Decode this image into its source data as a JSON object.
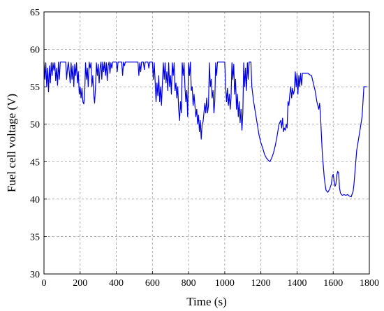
{
  "chart_data": {
    "type": "line",
    "xlabel": "Time (s)",
    "ylabel": "Fuel cell voltage (V)",
    "xlim": [
      0,
      1800
    ],
    "ylim": [
      30,
      65
    ],
    "xticks": [
      0,
      200,
      400,
      600,
      800,
      1000,
      1200,
      1400,
      1600,
      1800
    ],
    "yticks": [
      30,
      35,
      40,
      45,
      50,
      55,
      60,
      65
    ],
    "grid": true,
    "line_color": "#0000e6",
    "series": [
      {
        "values": [
          [
            0,
            58.3
          ],
          [
            5,
            56
          ],
          [
            10,
            58.2
          ],
          [
            15,
            55
          ],
          [
            20,
            57.5
          ],
          [
            25,
            54.3
          ],
          [
            30,
            57.8
          ],
          [
            35,
            55.5
          ],
          [
            40,
            58.2
          ],
          [
            45,
            56.5
          ],
          [
            50,
            58.2
          ],
          [
            55,
            57.2
          ],
          [
            60,
            58.2
          ],
          [
            65,
            55.8
          ],
          [
            70,
            57.5
          ],
          [
            75,
            55.2
          ],
          [
            80,
            58.3
          ],
          [
            85,
            56
          ],
          [
            90,
            58.3
          ],
          [
            120,
            58.3
          ],
          [
            125,
            56
          ],
          [
            130,
            57.5
          ],
          [
            135,
            58.3
          ],
          [
            140,
            57
          ],
          [
            145,
            55.5
          ],
          [
            150,
            58.2
          ],
          [
            155,
            56
          ],
          [
            160,
            57.8
          ],
          [
            165,
            55
          ],
          [
            170,
            58
          ],
          [
            175,
            56.5
          ],
          [
            180,
            58.2
          ],
          [
            185,
            55.5
          ],
          [
            190,
            57
          ],
          [
            195,
            54
          ],
          [
            200,
            55
          ],
          [
            205,
            53.5
          ],
          [
            210,
            54.8
          ],
          [
            215,
            53
          ],
          [
            220,
            52.7
          ],
          [
            225,
            54
          ],
          [
            230,
            58.2
          ],
          [
            235,
            56
          ],
          [
            240,
            57.5
          ],
          [
            245,
            55
          ],
          [
            250,
            58.3
          ],
          [
            255,
            57.5
          ],
          [
            260,
            58.2
          ],
          [
            265,
            55
          ],
          [
            270,
            56.5
          ],
          [
            275,
            54
          ],
          [
            280,
            52.8
          ],
          [
            285,
            55
          ],
          [
            290,
            58.2
          ],
          [
            295,
            56.5
          ],
          [
            300,
            58
          ],
          [
            305,
            55.5
          ],
          [
            310,
            57.5
          ],
          [
            315,
            58.3
          ],
          [
            320,
            56
          ],
          [
            325,
            58.3
          ],
          [
            330,
            57
          ],
          [
            335,
            58.3
          ],
          [
            340,
            56.5
          ],
          [
            345,
            58.2
          ],
          [
            350,
            55.8
          ],
          [
            355,
            57.8
          ],
          [
            360,
            58.3
          ],
          [
            365,
            56.8
          ],
          [
            370,
            58.2
          ],
          [
            375,
            57.5
          ],
          [
            380,
            58.3
          ],
          [
            400,
            58.3
          ],
          [
            405,
            57
          ],
          [
            410,
            58.3
          ],
          [
            430,
            58.3
          ],
          [
            435,
            56.5
          ],
          [
            440,
            58.3
          ],
          [
            445,
            57.8
          ],
          [
            450,
            58.3
          ],
          [
            520,
            58.3
          ],
          [
            525,
            56.5
          ],
          [
            530,
            58.2
          ],
          [
            535,
            57
          ],
          [
            540,
            58.3
          ],
          [
            550,
            58.3
          ],
          [
            555,
            57.3
          ],
          [
            560,
            58.3
          ],
          [
            575,
            58.3
          ],
          [
            580,
            57.5
          ],
          [
            585,
            58.3
          ],
          [
            600,
            58.3
          ],
          [
            605,
            56
          ],
          [
            610,
            58.2
          ],
          [
            615,
            55.8
          ],
          [
            620,
            53
          ],
          [
            625,
            55.5
          ],
          [
            630,
            53.8
          ],
          [
            635,
            56.5
          ],
          [
            640,
            53
          ],
          [
            645,
            55
          ],
          [
            650,
            52.5
          ],
          [
            655,
            55.5
          ],
          [
            660,
            58.2
          ],
          [
            665,
            56
          ],
          [
            670,
            58.2
          ],
          [
            675,
            55.5
          ],
          [
            680,
            57
          ],
          [
            685,
            54.5
          ],
          [
            690,
            58.2
          ],
          [
            695,
            55
          ],
          [
            700,
            56.5
          ],
          [
            705,
            54
          ],
          [
            710,
            58.2
          ],
          [
            715,
            56.5
          ],
          [
            720,
            58.2
          ],
          [
            725,
            54.5
          ],
          [
            730,
            55.5
          ],
          [
            735,
            53.5
          ],
          [
            740,
            55
          ],
          [
            745,
            52
          ],
          [
            750,
            50.5
          ],
          [
            755,
            53
          ],
          [
            760,
            51.5
          ],
          [
            765,
            58.2
          ],
          [
            770,
            56.5
          ],
          [
            775,
            58.2
          ],
          [
            780,
            55
          ],
          [
            785,
            53
          ],
          [
            790,
            54.5
          ],
          [
            795,
            51
          ],
          [
            800,
            58.2
          ],
          [
            805,
            56.5
          ],
          [
            810,
            58.3
          ],
          [
            815,
            54.5
          ],
          [
            820,
            55
          ],
          [
            825,
            52.5
          ],
          [
            830,
            54
          ],
          [
            835,
            52.5
          ],
          [
            840,
            51
          ],
          [
            845,
            52
          ],
          [
            850,
            50
          ],
          [
            855,
            51.2
          ],
          [
            860,
            49
          ],
          [
            865,
            50.5
          ],
          [
            870,
            48
          ],
          [
            875,
            50
          ],
          [
            880,
            50.3
          ],
          [
            885,
            51.5
          ],
          [
            890,
            52.8
          ],
          [
            895,
            51.5
          ],
          [
            900,
            53.5
          ],
          [
            905,
            51.5
          ],
          [
            910,
            52.5
          ],
          [
            915,
            58.2
          ],
          [
            920,
            55
          ],
          [
            925,
            56
          ],
          [
            930,
            53.5
          ],
          [
            935,
            54.5
          ],
          [
            940,
            51.5
          ],
          [
            945,
            53
          ],
          [
            950,
            58.2
          ],
          [
            955,
            56.5
          ],
          [
            960,
            58.3
          ],
          [
            1000,
            58.3
          ],
          [
            1005,
            55
          ],
          [
            1010,
            53
          ],
          [
            1015,
            54.8
          ],
          [
            1020,
            52.5
          ],
          [
            1025,
            54
          ],
          [
            1030,
            52
          ],
          [
            1035,
            53.5
          ],
          [
            1040,
            58.2
          ],
          [
            1045,
            56
          ],
          [
            1050,
            58
          ],
          [
            1055,
            54
          ],
          [
            1060,
            56
          ],
          [
            1065,
            52
          ],
          [
            1070,
            54
          ],
          [
            1075,
            51
          ],
          [
            1080,
            53
          ],
          [
            1085,
            50.2
          ],
          [
            1090,
            52
          ],
          [
            1095,
            49.2
          ],
          [
            1100,
            51.5
          ],
          [
            1105,
            58.2
          ],
          [
            1110,
            55
          ],
          [
            1115,
            57.5
          ],
          [
            1120,
            54.5
          ],
          [
            1125,
            58.2
          ],
          [
            1130,
            56
          ],
          [
            1135,
            58.3
          ],
          [
            1145,
            58.3
          ],
          [
            1150,
            55
          ],
          [
            1160,
            53
          ],
          [
            1170,
            51.5
          ],
          [
            1180,
            50
          ],
          [
            1190,
            48.5
          ],
          [
            1200,
            47.5
          ],
          [
            1210,
            46.8
          ],
          [
            1220,
            46
          ],
          [
            1230,
            45.5
          ],
          [
            1240,
            45.2
          ],
          [
            1250,
            45
          ],
          [
            1260,
            45.5
          ],
          [
            1270,
            46.2
          ],
          [
            1280,
            47.2
          ],
          [
            1290,
            48.5
          ],
          [
            1300,
            50
          ],
          [
            1310,
            50.5
          ],
          [
            1315,
            49.5
          ],
          [
            1320,
            50.8
          ],
          [
            1325,
            49
          ],
          [
            1330,
            49.5
          ],
          [
            1335,
            49.2
          ],
          [
            1340,
            50
          ],
          [
            1345,
            49.5
          ],
          [
            1350,
            53
          ],
          [
            1355,
            52.5
          ],
          [
            1360,
            54
          ],
          [
            1365,
            55
          ],
          [
            1370,
            53.5
          ],
          [
            1375,
            54.8
          ],
          [
            1380,
            54
          ],
          [
            1385,
            54.5
          ],
          [
            1390,
            57
          ],
          [
            1395,
            55
          ],
          [
            1400,
            56.8
          ],
          [
            1405,
            54
          ],
          [
            1410,
            56.5
          ],
          [
            1415,
            55
          ],
          [
            1420,
            56.8
          ],
          [
            1425,
            55.2
          ],
          [
            1430,
            56.8
          ],
          [
            1440,
            56.8
          ],
          [
            1450,
            56.8
          ],
          [
            1460,
            56.8
          ],
          [
            1470,
            56.6
          ],
          [
            1480,
            56.5
          ],
          [
            1490,
            55.5
          ],
          [
            1500,
            54.5
          ],
          [
            1510,
            53
          ],
          [
            1520,
            52
          ],
          [
            1525,
            52.8
          ],
          [
            1530,
            51
          ],
          [
            1535,
            48.5
          ],
          [
            1540,
            46
          ],
          [
            1545,
            44.5
          ],
          [
            1550,
            43
          ],
          [
            1555,
            42
          ],
          [
            1560,
            41.2
          ],
          [
            1570,
            40.9
          ],
          [
            1580,
            41.3
          ],
          [
            1590,
            42
          ],
          [
            1595,
            43
          ],
          [
            1600,
            43.3
          ],
          [
            1605,
            42.5
          ],
          [
            1610,
            41.7
          ],
          [
            1615,
            42
          ],
          [
            1620,
            43.2
          ],
          [
            1625,
            43.7
          ],
          [
            1630,
            43.5
          ],
          [
            1635,
            41.5
          ],
          [
            1640,
            40.8
          ],
          [
            1650,
            40.5
          ],
          [
            1660,
            40.6
          ],
          [
            1670,
            40.5
          ],
          [
            1680,
            40.6
          ],
          [
            1690,
            40.4
          ],
          [
            1700,
            40.3
          ],
          [
            1705,
            40.7
          ],
          [
            1710,
            41
          ],
          [
            1715,
            42
          ],
          [
            1720,
            43.5
          ],
          [
            1725,
            45
          ],
          [
            1730,
            46.5
          ],
          [
            1740,
            48
          ],
          [
            1750,
            49.5
          ],
          [
            1760,
            51
          ],
          [
            1765,
            53
          ],
          [
            1770,
            55
          ],
          [
            1785,
            55
          ]
        ]
      }
    ]
  }
}
